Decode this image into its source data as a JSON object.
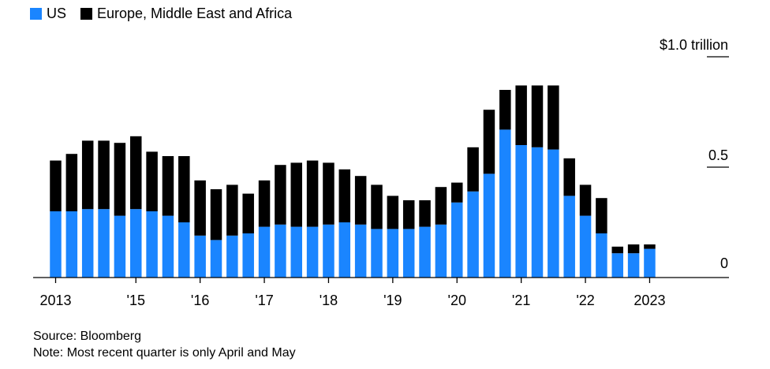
{
  "legend": [
    {
      "label": "US",
      "color": "#1a85ff"
    },
    {
      "label": "Europe, Middle East and Africa",
      "color": "#000000"
    }
  ],
  "footer": {
    "source": "Source: Bloomberg",
    "note": "Note: Most recent quarter is only April and May"
  },
  "chart_data": {
    "type": "bar",
    "stacked": true,
    "ylim": [
      0,
      1.0
    ],
    "unit_label": "$1.0 trillion",
    "y_ticks": [
      {
        "value": 1.0,
        "label": "$1.0 trillion"
      },
      {
        "value": 0.5,
        "label": "0.5"
      },
      {
        "value": 0,
        "label": "0"
      }
    ],
    "x_tick_labels": [
      {
        "index": 0,
        "label": "2013"
      },
      {
        "index": 5,
        "label": "'15"
      },
      {
        "index": 9,
        "label": "'16"
      },
      {
        "index": 13,
        "label": "'17"
      },
      {
        "index": 17,
        "label": "'18"
      },
      {
        "index": 21,
        "label": "'19"
      },
      {
        "index": 25,
        "label": "'20"
      },
      {
        "index": 29,
        "label": "'21"
      },
      {
        "index": 33,
        "label": "'22"
      },
      {
        "index": 37,
        "label": "2023"
      }
    ],
    "series": [
      {
        "name": "US",
        "color": "#1a85ff",
        "values": [
          0.3,
          0.3,
          0.31,
          0.31,
          0.28,
          0.31,
          0.3,
          0.28,
          0.25,
          0.19,
          0.17,
          0.19,
          0.2,
          0.23,
          0.24,
          0.23,
          0.23,
          0.24,
          0.25,
          0.24,
          0.22,
          0.22,
          0.22,
          0.23,
          0.24,
          0.34,
          0.39,
          0.47,
          0.67,
          0.6,
          0.59,
          0.58,
          0.37,
          0.28,
          0.2,
          0.11,
          0.11,
          0.13
        ]
      },
      {
        "name": "Europe, Middle East and Africa",
        "color": "#000000",
        "values": [
          0.23,
          0.26,
          0.31,
          0.31,
          0.33,
          0.33,
          0.27,
          0.27,
          0.3,
          0.25,
          0.23,
          0.23,
          0.18,
          0.21,
          0.27,
          0.29,
          0.3,
          0.28,
          0.24,
          0.22,
          0.2,
          0.15,
          0.13,
          0.12,
          0.17,
          0.09,
          0.2,
          0.29,
          0.18,
          0.27,
          0.28,
          0.29,
          0.17,
          0.14,
          0.16,
          0.03,
          0.04,
          0.02
        ]
      }
    ]
  }
}
